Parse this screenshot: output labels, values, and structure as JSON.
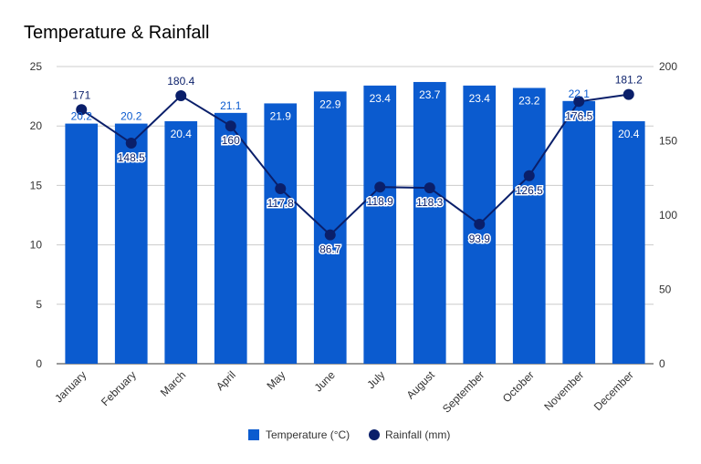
{
  "chart_data": {
    "type": "bar",
    "title": "Temperature & Rainfall",
    "categories": [
      "January",
      "February",
      "March",
      "April",
      "May",
      "June",
      "July",
      "August",
      "September",
      "October",
      "November",
      "December"
    ],
    "series": [
      {
        "name": "Temperature (°C)",
        "type": "bar",
        "axis": "left",
        "color": "#0b5bcf",
        "values": [
          20.2,
          20.2,
          20.4,
          21.1,
          21.9,
          22.9,
          23.4,
          23.7,
          23.4,
          23.2,
          22.1,
          20.4
        ]
      },
      {
        "name": "Rainfall (mm)",
        "type": "line",
        "axis": "right",
        "color": "#0a1f6a",
        "values": [
          171,
          148.5,
          180.4,
          160,
          117.8,
          86.7,
          118.9,
          118.3,
          93.9,
          126.5,
          176.5,
          181.2
        ]
      }
    ],
    "y_left": {
      "min": 0,
      "max": 25,
      "ticks": [
        0,
        5,
        10,
        15,
        20,
        25
      ]
    },
    "y_right": {
      "min": 0,
      "max": 200,
      "ticks": [
        0,
        50,
        100,
        150,
        200
      ]
    },
    "grid": true,
    "legend_position": "bottom"
  }
}
